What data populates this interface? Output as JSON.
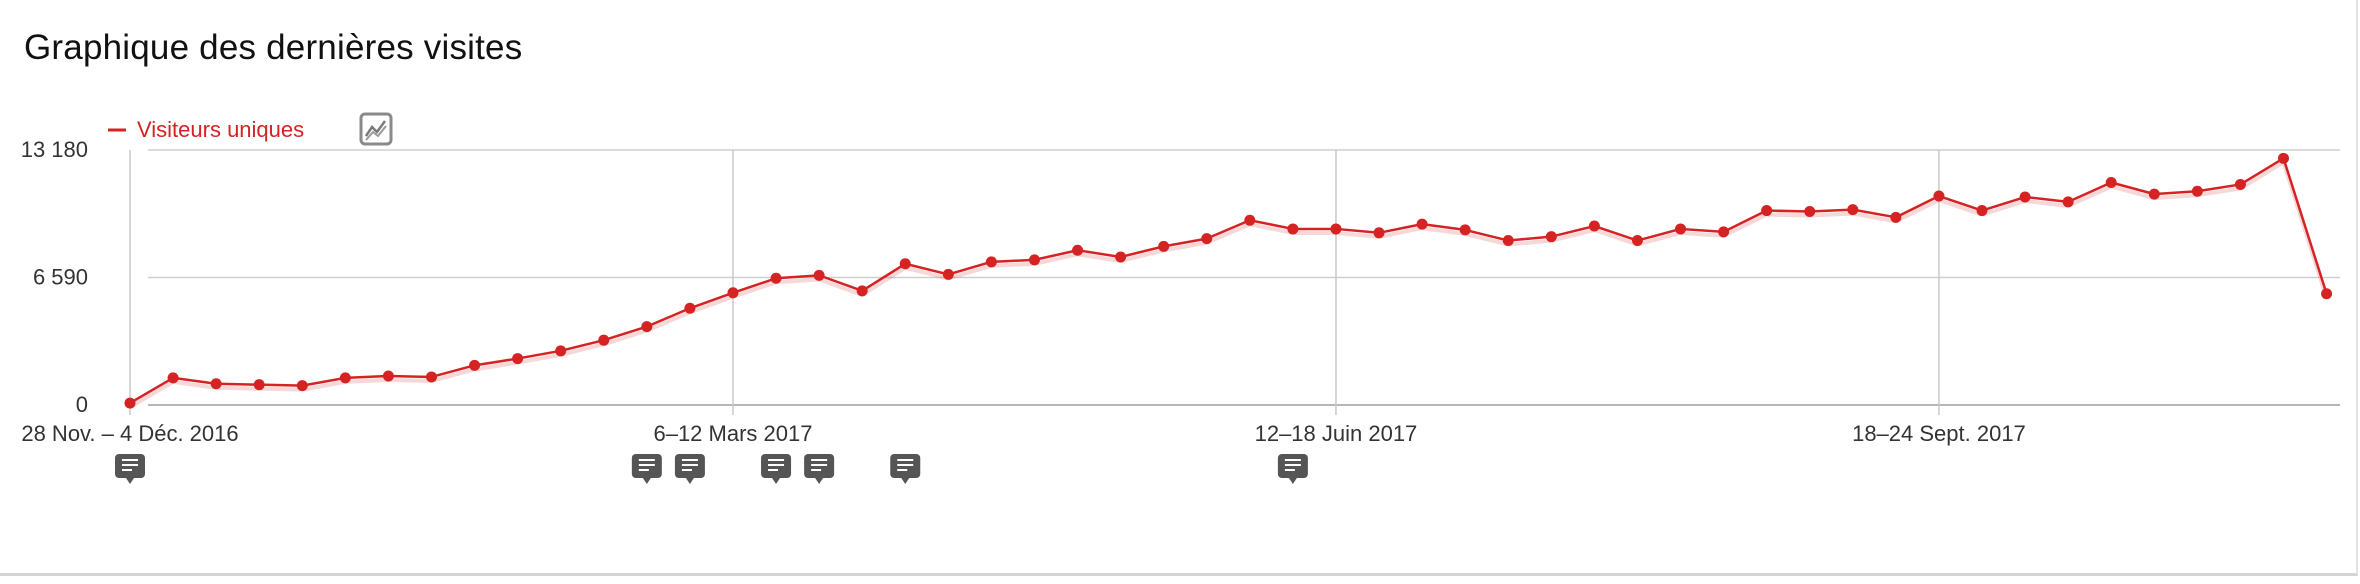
{
  "widget": {
    "title": "Graphique des dernières visites",
    "evolution_icon": "line-chart-icon",
    "annotation_icon": "comment-icon"
  },
  "chart_data": {
    "type": "line",
    "series": [
      {
        "name": "Visiteurs uniques",
        "color": "#d52323",
        "values": [
          100,
          1400,
          1100,
          1050,
          1000,
          1400,
          1500,
          1450,
          2050,
          2400,
          2800,
          3350,
          4050,
          5000,
          5800,
          6550,
          6700,
          5900,
          7300,
          6750,
          7400,
          7500,
          8000,
          7650,
          8200,
          8600,
          9550,
          9100,
          9100,
          8900,
          9350,
          9050,
          8500,
          8700,
          9250,
          8500,
          9100,
          8950,
          10050,
          10000,
          10100,
          9700,
          10800,
          10050,
          10750,
          10500,
          11500,
          10900,
          11050,
          11400,
          12750,
          5750
        ]
      }
    ],
    "x_tick_labels": [
      {
        "label": "28 Nov. – 4 Déc. 2016",
        "index": 0
      },
      {
        "label": "6–12 Mars 2017",
        "index": 14
      },
      {
        "label": "12–18 Juin 2017",
        "index": 28
      },
      {
        "label": "18–24 Sept. 2017",
        "index": 42
      }
    ],
    "y_ticks": [
      0,
      6590,
      13180
    ],
    "y_tick_labels": [
      "0",
      "6 590",
      "13 180"
    ],
    "ylim": [
      0,
      13180
    ],
    "annotation_indices": [
      0,
      12,
      13,
      15,
      16,
      18,
      27
    ],
    "legend_position": "top-left",
    "grid": true
  }
}
